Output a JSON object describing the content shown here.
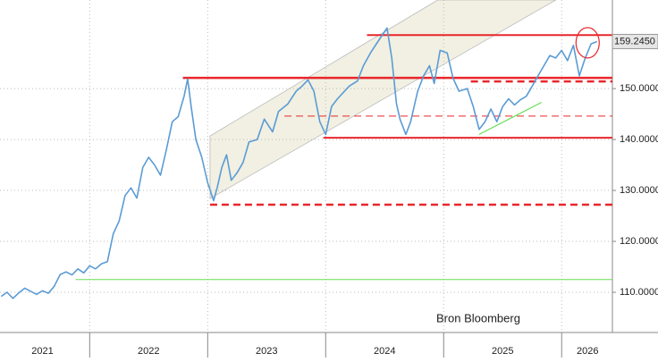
{
  "chart_data": {
    "type": "line",
    "annotation": "Bron Bloomberg",
    "xlim": [
      2021.24,
      2026.43
    ],
    "ylim": [
      102.1,
      167.4
    ],
    "xticks": [
      {
        "value": 2021.6,
        "label": "2021"
      },
      {
        "value": 2022.5,
        "label": "2022"
      },
      {
        "value": 2023.5,
        "label": "2023"
      },
      {
        "value": 2024.5,
        "label": "2024"
      },
      {
        "value": 2025.5,
        "label": "2025"
      },
      {
        "value": 2026.22,
        "label": "2026"
      }
    ],
    "xgrid_lines": [
      2022,
      2023,
      2024,
      2025,
      2026
    ],
    "yticks": [
      {
        "value": 110,
        "label": "110.0000"
      },
      {
        "value": 120,
        "label": "120.0000"
      },
      {
        "value": 130,
        "label": "130.0000"
      },
      {
        "value": 140,
        "label": "140.0000"
      },
      {
        "value": 150,
        "label": "150.0000"
      }
    ],
    "grid": true,
    "series": [
      {
        "color": "#5b9bd5",
        "x": [
          2021.25,
          2021.3,
          2021.35,
          2021.4,
          2021.45,
          2021.5,
          2021.55,
          2021.6,
          2021.65,
          2021.7,
          2021.75,
          2021.8,
          2021.85,
          2021.9,
          2021.95,
          2022.0,
          2022.05,
          2022.1,
          2022.15,
          2022.2,
          2022.25,
          2022.3,
          2022.35,
          2022.4,
          2022.45,
          2022.5,
          2022.55,
          2022.6,
          2022.65,
          2022.7,
          2022.75,
          2022.8,
          2022.83,
          2022.86,
          2022.9,
          2022.95,
          2023.0,
          2023.05,
          2023.08,
          2023.12,
          2023.16,
          2023.2,
          2023.25,
          2023.3,
          2023.35,
          2023.42,
          2023.48,
          2023.55,
          2023.6,
          2023.68,
          2023.75,
          2023.8,
          2023.85,
          2023.9,
          2023.95,
          2024.0,
          2024.05,
          2024.1,
          2024.2,
          2024.27,
          2024.32,
          2024.38,
          2024.45,
          2024.52,
          2024.56,
          2024.6,
          2024.63,
          2024.68,
          2024.72,
          2024.78,
          2024.83,
          2024.88,
          2024.92,
          2024.97,
          2025.03,
          2025.08,
          2025.13,
          2025.2,
          2025.25,
          2025.3,
          2025.35,
          2025.4,
          2025.45,
          2025.5,
          2025.55,
          2025.6,
          2025.65,
          2025.7,
          2025.75,
          2025.8,
          2025.85,
          2025.9,
          2025.95,
          2026.0,
          2026.05,
          2026.1,
          2026.15,
          2026.2,
          2026.25,
          2026.3
        ],
        "values": [
          109.2,
          110.0,
          108.8,
          109.9,
          110.8,
          110.2,
          109.6,
          110.3,
          109.8,
          111.2,
          113.5,
          114.0,
          113.4,
          114.6,
          113.8,
          115.2,
          114.6,
          115.6,
          116.0,
          121.5,
          124.0,
          129.0,
          130.5,
          128.5,
          134.5,
          136.5,
          135.0,
          133.0,
          138.0,
          143.5,
          144.5,
          148.5,
          151.9,
          146.5,
          140.0,
          136.5,
          131.5,
          128.0,
          130.5,
          134.5,
          137.0,
          132.0,
          133.5,
          135.5,
          139.5,
          140.0,
          144.0,
          141.5,
          145.5,
          147.0,
          149.5,
          150.5,
          151.7,
          149.5,
          143.5,
          141.0,
          146.5,
          148.0,
          150.5,
          151.5,
          154.5,
          157.0,
          159.5,
          161.9,
          156.0,
          147.0,
          144.0,
          141.0,
          143.5,
          149.5,
          152.5,
          154.5,
          151.0,
          157.5,
          157.0,
          152.0,
          149.5,
          150.0,
          146.5,
          142.0,
          143.5,
          146.0,
          143.5,
          146.5,
          148.0,
          146.8,
          147.8,
          148.5,
          150.5,
          152.5,
          154.5,
          156.5,
          156.0,
          157.5,
          155.5,
          158.5,
          152.5,
          156.0,
          158.8,
          159.245
        ],
        "last_value_label": "159.2450"
      }
    ],
    "levels": [
      {
        "value": 160.5,
        "from": 2024.35,
        "color": "#e8262b",
        "style": "solid",
        "width": 2
      },
      {
        "value": 152.1,
        "from": 2022.79,
        "color": "#e8262b",
        "style": "solid",
        "width": 2.5
      },
      {
        "value": 151.4,
        "from": 2025.23,
        "color": "#e8262b",
        "style": "dashed",
        "width": 2.5
      },
      {
        "value": 144.6,
        "from": 2023.65,
        "color": "#e8262b",
        "style": "dashed",
        "width": 1
      },
      {
        "value": 140.35,
        "from": 2023.98,
        "color": "#e8262b",
        "style": "solid",
        "width": 2
      },
      {
        "value": 127.2,
        "from": 2023.02,
        "color": "#e8262b",
        "style": "dashed",
        "width": 2.5
      },
      {
        "value": 112.5,
        "from": 2021.88,
        "color": "#66dd55",
        "style": "solid",
        "width": 1
      }
    ],
    "channel": {
      "color": "#ecebd8",
      "lower": [
        [
          2023.02,
          128.4
        ],
        [
          2025.95,
          167.4
        ]
      ],
      "upper": [
        [
          2023.02,
          140.7
        ],
        [
          2024.95,
          167.4
        ]
      ]
    },
    "trend": {
      "color": "#66dd55",
      "points": [
        [
          2025.3,
          141.0
        ],
        [
          2025.83,
          147.3
        ]
      ]
    },
    "circle": {
      "x": 2026.22,
      "y": 159.0,
      "color": "#e8262b"
    }
  }
}
